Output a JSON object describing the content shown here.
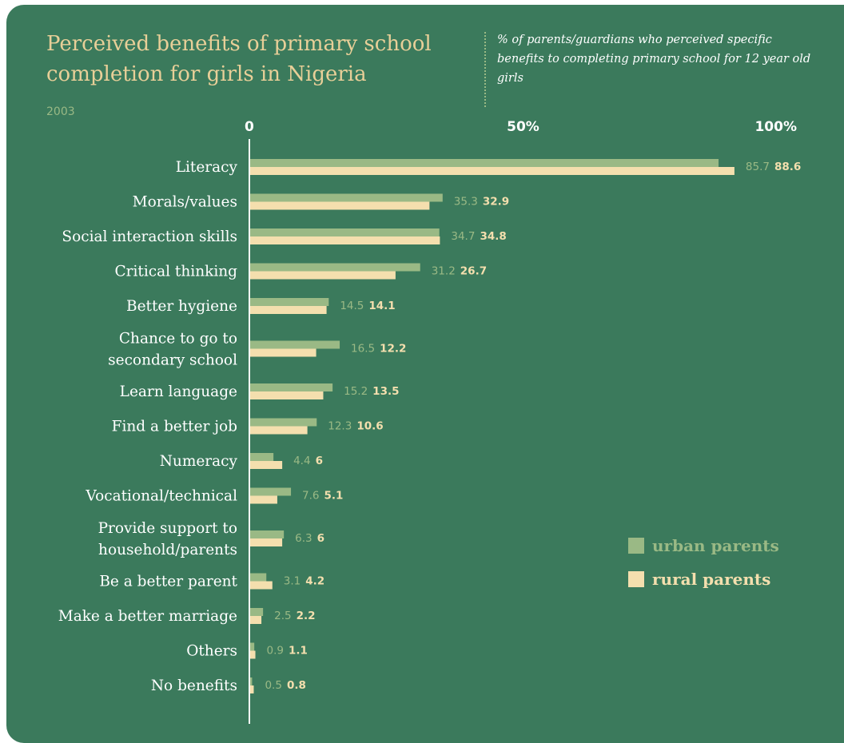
{
  "title": "Perceived benefits of primary school completion for girls in Nigeria",
  "year": "2003",
  "subtitle": "% of parents/guardians who perceived specific benefits to completing primary school for 12 year old girls",
  "colors": {
    "background": "#3b7a5c",
    "urban": "#9ab985",
    "rural": "#f4dfae",
    "title": "#e8cf98",
    "text": "#ffffff"
  },
  "legend": {
    "urban_label": "urban parents",
    "rural_label": "rural parents"
  },
  "chart_data": {
    "type": "bar",
    "orientation": "horizontal",
    "title": "Perceived benefits of primary school completion for girls in Nigeria",
    "subtitle": "% of parents/guardians who perceived specific benefits to completing primary school for 12 year old girls",
    "xlim": [
      0,
      100
    ],
    "x_ticks": [
      "0",
      "50%",
      "100%"
    ],
    "categories": [
      [
        "Literacy"
      ],
      [
        "Morals/values"
      ],
      [
        "Social interaction skills"
      ],
      [
        "Critical thinking"
      ],
      [
        "Better hygiene"
      ],
      [
        "Chance to go to",
        "secondary school"
      ],
      [
        "Learn language"
      ],
      [
        "Find a better job"
      ],
      [
        "Numeracy"
      ],
      [
        "Vocational/technical"
      ],
      [
        "Provide support to",
        "household/parents"
      ],
      [
        "Be a better parent"
      ],
      [
        "Make a better marriage"
      ],
      [
        "Others"
      ],
      [
        "No benefits"
      ]
    ],
    "series": [
      {
        "name": "urban parents",
        "color": "#9ab985",
        "values": [
          85.7,
          35.3,
          34.7,
          31.2,
          14.5,
          16.5,
          15.2,
          12.3,
          4.4,
          7.6,
          6.3,
          3.1,
          2.5,
          0.9,
          0.5
        ]
      },
      {
        "name": "rural parents",
        "color": "#f4dfae",
        "values": [
          88.6,
          32.9,
          34.8,
          26.7,
          14.1,
          12.2,
          13.5,
          10.6,
          6,
          5.1,
          6,
          4.2,
          2.2,
          1.1,
          0.8
        ]
      }
    ],
    "legend_position": "bottom-right"
  }
}
